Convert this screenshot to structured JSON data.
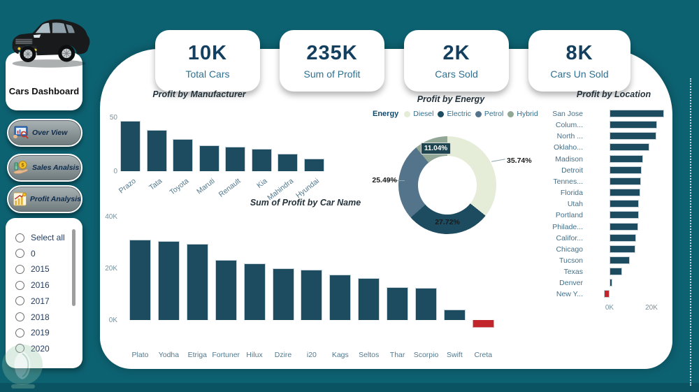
{
  "colors": {
    "background": "#0D6272",
    "background_strip": "#0A5362",
    "bar": "#1D4B60",
    "negative": "#C2262C",
    "kpi_value": "#143F5E",
    "kpi_label": "#2E7092"
  },
  "sidebar": {
    "title": "Cars Dashboard",
    "nav": [
      {
        "label": "Over View",
        "icon": "overview-monitor-icon"
      },
      {
        "label": "Sales Analsis",
        "icon": "sales-coins-icon"
      },
      {
        "label": "Profit Analysis",
        "icon": "profit-chart-icon"
      }
    ],
    "filters": [
      "Select all",
      "0",
      "2015",
      "2016",
      "2017",
      "2018",
      "2019",
      "2020"
    ]
  },
  "kpis": [
    {
      "value": "10K",
      "label": "Total Cars"
    },
    {
      "value": "235K",
      "label": "Sum of Profit"
    },
    {
      "value": "2K",
      "label": "Cars Sold"
    },
    {
      "value": "8K",
      "label": "Cars Un Sold"
    }
  ],
  "chart_data": [
    {
      "id": "manufacturer",
      "type": "bar",
      "title": "Profit by Manufacturer",
      "categories": [
        "Prazo",
        "Tata",
        "Toyota",
        "Maruti",
        "Renault",
        "Kia",
        "Mahindra",
        "Hyundai"
      ],
      "values": [
        47,
        38,
        30,
        24,
        22.5,
        21,
        16,
        11.5
      ],
      "ylim": [
        0,
        50
      ],
      "yticks": [
        0,
        50
      ],
      "grid": false
    },
    {
      "id": "energy",
      "type": "pie",
      "title": "Profit by Energy",
      "legend_title": "Energy",
      "legend_position": "top",
      "slices": [
        {
          "name": "Diesel",
          "value": 35.74,
          "pct_label": "35.74%",
          "color": "#E5ECD8"
        },
        {
          "name": "Electric",
          "value": 27.72,
          "pct_label": "27.72%",
          "color": "#1D4B60"
        },
        {
          "name": "Petrol",
          "value": 25.49,
          "pct_label": "25.49%",
          "color": "#54748B"
        },
        {
          "name": "Hybrid",
          "value": 11.04,
          "pct_label": "11.04%",
          "color": "#92A795"
        }
      ]
    },
    {
      "id": "carname",
      "type": "bar",
      "title": "Sum of Profit by Car Name",
      "categories": [
        "Plato",
        "Yodha",
        "Etriga",
        "Fortuner",
        "Hilux",
        "Dzire",
        "i20",
        "Kags",
        "Seltos",
        "Thar",
        "Scorpio",
        "Swift",
        "Creta"
      ],
      "values": [
        31,
        30.6,
        29.5,
        23.2,
        22,
        20,
        19.5,
        17.6,
        16.3,
        12.6,
        12.4,
        4,
        -3
      ],
      "unit": "K",
      "ylim": [
        0,
        40
      ],
      "yticks": [
        0,
        20,
        40
      ],
      "ytick_labels": [
        "0K",
        "20K",
        "40K"
      ],
      "grid": false
    },
    {
      "id": "location",
      "type": "bar-horizontal",
      "title": "Profit by Location",
      "categories": [
        "San Jose",
        "Colum...",
        "North ...",
        "Oklaho...",
        "Madison",
        "Detroit",
        "Tennes...",
        "Florida",
        "Utah",
        "Portland",
        "Philade...",
        "Califor...",
        "Chicago",
        "Tucson",
        "Texas",
        "Denver",
        "New Y..."
      ],
      "values": [
        26,
        22.7,
        22.2,
        18.9,
        15.9,
        15.2,
        15,
        14.8,
        14.1,
        14,
        13.7,
        12.5,
        12.2,
        9.8,
        5.9,
        1.4,
        -2.7
      ],
      "unit": "K",
      "xlim": [
        0,
        30
      ],
      "xticks": [
        0,
        20
      ],
      "xtick_labels": [
        "0K",
        "20K"
      ]
    }
  ]
}
